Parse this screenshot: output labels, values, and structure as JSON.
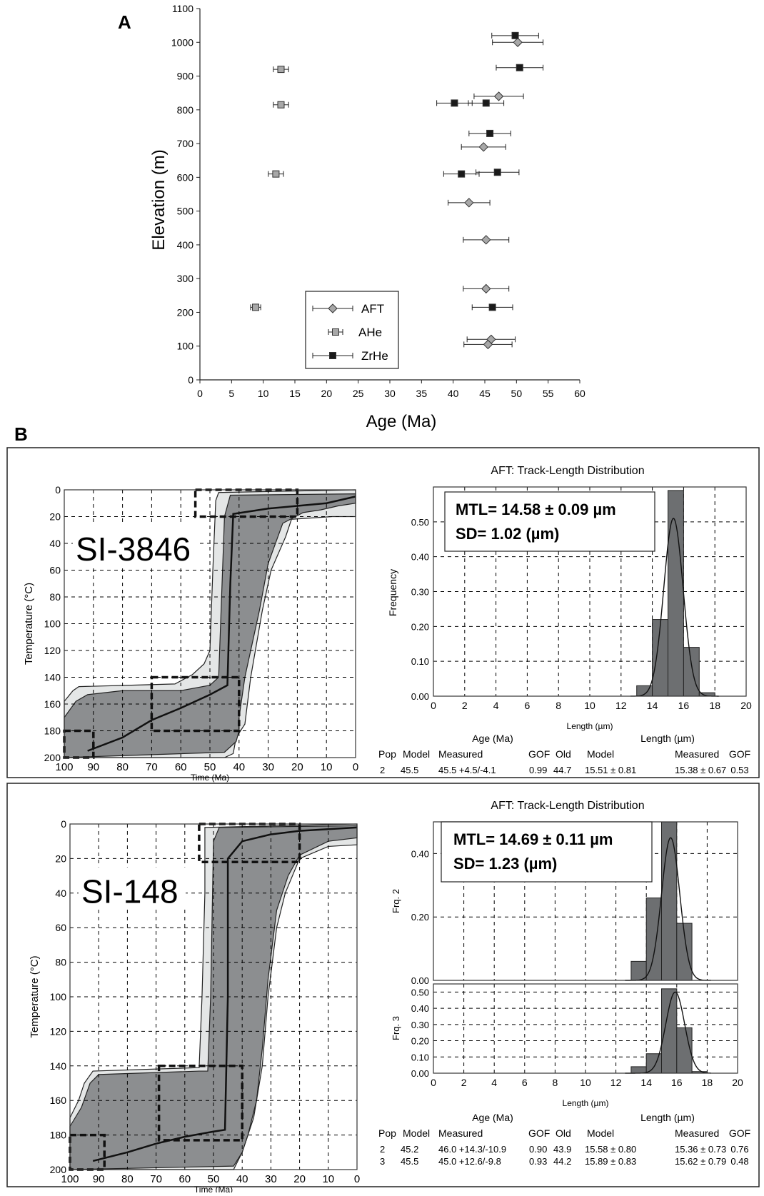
{
  "panel_a": {
    "letter": "A",
    "xlabel": "Age (Ma)",
    "ylabel": "Elevation (m)",
    "legend": [
      "AFT",
      "AHe",
      "ZrHe"
    ]
  },
  "panel_b": {
    "letter": "B"
  },
  "sample1": {
    "name": "SI-3846",
    "ylabel": "Temperature (°C)",
    "xlabel": "Time (Ma)",
    "hist_title": "AFT: Track-Length Distribution",
    "mtl": "MTL= 14.58 ± 0.09 µm",
    "sd": "SD= 1.02 (µm)",
    "hist_xlabel": "Length (µm)",
    "hist_ylabel": "Frequency",
    "table_header1_age": "Age (Ma)",
    "table_header1_len": "Length (µm)",
    "table_cols": [
      "Pop",
      "Model",
      "Measured",
      "GOF",
      "Old",
      "Model",
      "Measured",
      "GOF"
    ],
    "table_rows": [
      [
        "2",
        "45.5",
        "45.5 +4.5/-4.1",
        "0.99",
        "44.7",
        "15.51 ± 0.81",
        "15.38 ± 0.67",
        "0.53"
      ]
    ]
  },
  "sample2": {
    "name": "SI-148",
    "ylabel": "Temperature (°C)",
    "xlabel": "Time (Ma)",
    "hist_title": "AFT: Track-Length Distribution",
    "mtl": "MTL= 14.69 ± 0.11 µm",
    "sd": "SD= 1.23 (µm)",
    "hist_xlabel": "Length (µm)",
    "hist_ylabel_top": "Frq. 2",
    "hist_ylabel_bot": "Frq. 3",
    "table_header1_age": "Age (Ma)",
    "table_header1_len": "Length (µm)",
    "table_cols": [
      "Pop",
      "Model",
      "Measured",
      "GOF",
      "Old",
      "Model",
      "Measured",
      "GOF"
    ],
    "table_rows": [
      [
        "2",
        "45.2",
        "46.0 +14.3/-10.9",
        "0.90",
        "43.9",
        "15.58 ± 0.80",
        "15.36 ± 0.73",
        "0.76"
      ],
      [
        "3",
        "45.5",
        "45.0 +12.6/-9.8",
        "0.93",
        "44.2",
        "15.89 ± 0.83",
        "15.62 ± 0.79",
        "0.48"
      ]
    ]
  },
  "chart_data": [
    {
      "type": "scatter",
      "title": "",
      "xlabel": "Age (Ma)",
      "ylabel": "Elevation (m)",
      "xlim": [
        0,
        60
      ],
      "ylim": [
        0,
        1100
      ],
      "xticks": [
        0,
        5,
        10,
        15,
        20,
        25,
        30,
        35,
        40,
        45,
        50,
        55,
        60
      ],
      "yticks": [
        0,
        100,
        200,
        300,
        400,
        500,
        600,
        700,
        800,
        900,
        1000,
        1100
      ],
      "legend_position": "bottom-left",
      "series": [
        {
          "name": "AFT",
          "marker": "diamond",
          "color": "#a8a8a8",
          "points": [
            {
              "x": 50.2,
              "y": 1000,
              "err": 4.0
            },
            {
              "x": 47.2,
              "y": 840,
              "err": 3.9
            },
            {
              "x": 44.8,
              "y": 690,
              "err": 3.5
            },
            {
              "x": 42.5,
              "y": 525,
              "err": 3.3
            },
            {
              "x": 45.2,
              "y": 415,
              "err": 3.6
            },
            {
              "x": 45.2,
              "y": 270,
              "err": 3.6
            },
            {
              "x": 46.0,
              "y": 120,
              "err": 3.8
            },
            {
              "x": 45.5,
              "y": 105,
              "err": 3.8
            }
          ]
        },
        {
          "name": "AHe",
          "marker": "square",
          "color": "#a8a8a8",
          "points": [
            {
              "x": 12.8,
              "y": 920,
              "err": 1.2
            },
            {
              "x": 12.8,
              "y": 815,
              "err": 1.2
            },
            {
              "x": 12.0,
              "y": 610,
              "err": 1.2
            },
            {
              "x": 8.8,
              "y": 215,
              "err": 0.8
            }
          ]
        },
        {
          "name": "ZrHe",
          "marker": "square",
          "color": "#1a1a1a",
          "points": [
            {
              "x": 49.8,
              "y": 1020,
              "err": 3.7
            },
            {
              "x": 50.5,
              "y": 925,
              "err": 3.7
            },
            {
              "x": 40.2,
              "y": 820,
              "err": 2.8
            },
            {
              "x": 45.2,
              "y": 820,
              "err": 2.8
            },
            {
              "x": 45.8,
              "y": 730,
              "err": 3.3
            },
            {
              "x": 41.3,
              "y": 610,
              "err": 2.8
            },
            {
              "x": 47.0,
              "y": 615,
              "err": 3.4
            },
            {
              "x": 46.2,
              "y": 215,
              "err": 3.2
            }
          ]
        }
      ]
    },
    {
      "type": "area",
      "name": "SI-3846 thermal history",
      "xlabel": "Time (Ma)",
      "ylabel": "Temperature (°C)",
      "xlim": [
        100,
        0
      ],
      "ylim": [
        200,
        0
      ],
      "xticks": [
        100,
        90,
        80,
        70,
        60,
        50,
        40,
        30,
        20,
        10,
        0
      ],
      "yticks": [
        0,
        20,
        40,
        60,
        80,
        100,
        120,
        140,
        160,
        180,
        200
      ],
      "best_fit": [
        [
          92,
          195
        ],
        [
          80,
          185
        ],
        [
          70,
          172
        ],
        [
          60,
          163
        ],
        [
          50,
          153
        ],
        [
          44,
          146
        ],
        [
          43,
          70
        ],
        [
          42,
          18
        ],
        [
          30,
          14
        ],
        [
          20,
          12
        ],
        [
          10,
          10
        ],
        [
          0,
          5
        ]
      ],
      "constraint_boxes": [
        [
          100,
          90,
          180,
          200
        ],
        [
          70,
          40,
          140,
          180
        ],
        [
          55,
          20,
          0,
          20
        ]
      ]
    },
    {
      "type": "bar",
      "name": "SI-3846 AFT track-length distribution",
      "xlabel": "Length (µm)",
      "ylabel": "Frequency",
      "xlim": [
        0,
        20
      ],
      "ylim": [
        0,
        0.6
      ],
      "xticks": [
        0,
        2,
        4,
        6,
        8,
        10,
        12,
        14,
        16,
        18,
        20
      ],
      "yticks": [
        0,
        0.1,
        0.2,
        0.3,
        0.4,
        0.5
      ],
      "categories": [
        "13-14",
        "14-15",
        "15-16",
        "16-17",
        "17-18"
      ],
      "values": [
        0.03,
        0.22,
        0.59,
        0.14,
        0.01
      ]
    },
    {
      "type": "area",
      "name": "SI-148 thermal history",
      "xlabel": "Time (Ma)",
      "ylabel": "Temperature (°C)",
      "xlim": [
        100,
        0
      ],
      "ylim": [
        200,
        0
      ],
      "xticks": [
        100,
        90,
        80,
        70,
        60,
        50,
        40,
        30,
        20,
        10,
        0
      ],
      "yticks": [
        0,
        20,
        40,
        60,
        80,
        100,
        120,
        140,
        160,
        180,
        200
      ],
      "best_fit": [
        [
          92,
          195
        ],
        [
          80,
          190
        ],
        [
          70,
          185
        ],
        [
          60,
          181
        ],
        [
          50,
          178
        ],
        [
          46,
          177
        ],
        [
          45,
          100
        ],
        [
          45,
          20
        ],
        [
          40,
          10
        ],
        [
          30,
          6
        ],
        [
          20,
          4
        ],
        [
          10,
          3
        ],
        [
          0,
          2
        ]
      ],
      "constraint_boxes": [
        [
          100,
          88,
          180,
          200
        ],
        [
          69,
          40,
          140,
          183
        ],
        [
          55,
          20,
          0,
          22
        ]
      ]
    },
    {
      "type": "bar",
      "name": "SI-148 AFT track-length distribution (Pop 2 / Pop 3)",
      "xlabel": "Length (µm)",
      "xlim": [
        0,
        20
      ],
      "xticks": [
        0,
        2,
        4,
        6,
        8,
        10,
        12,
        14,
        16,
        18,
        20
      ],
      "categories": [
        "13-14",
        "14-15",
        "15-16",
        "16-17",
        "17-18"
      ],
      "series": [
        {
          "name": "Frq. 2",
          "values": [
            0.06,
            0.26,
            0.6,
            0.18,
            0.0
          ],
          "ylim": [
            0,
            0.5
          ]
        },
        {
          "name": "Frq. 3",
          "values": [
            0.04,
            0.12,
            0.52,
            0.28,
            0.01
          ],
          "ylim": [
            0,
            0.55
          ]
        }
      ]
    }
  ]
}
